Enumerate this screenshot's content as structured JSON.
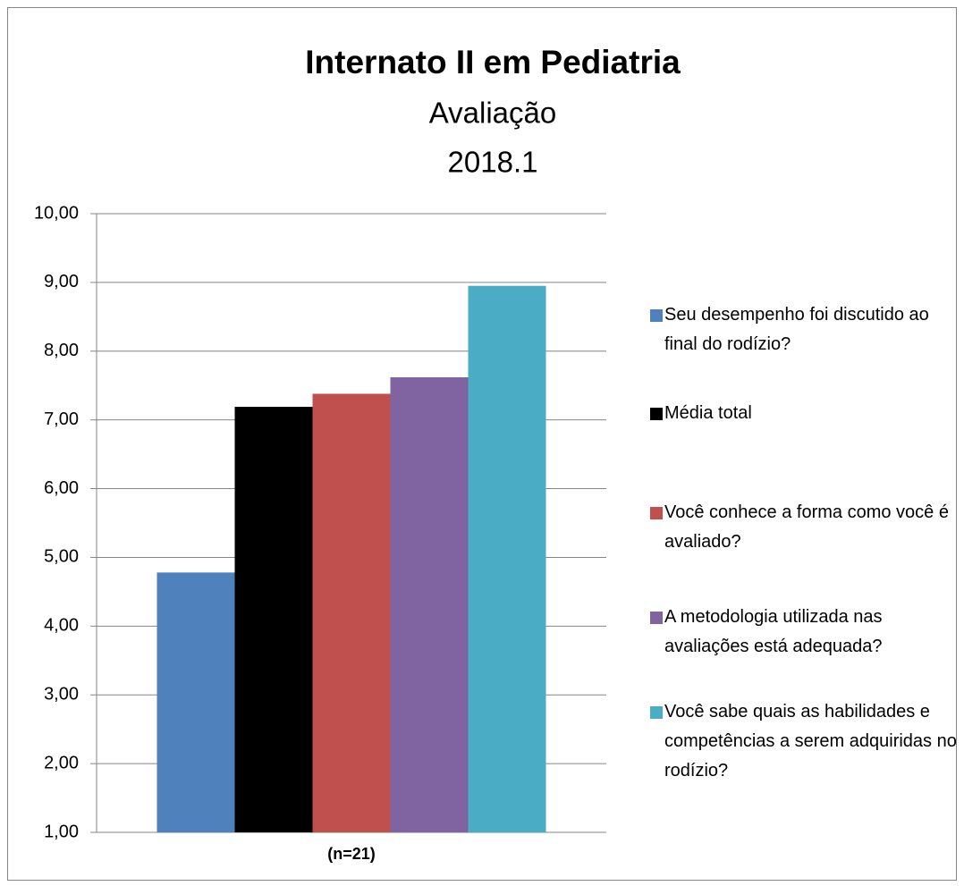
{
  "chart_data": {
    "type": "bar",
    "title": "Internato II em Pediatria",
    "subtitle": [
      "Avaliação",
      "2018.1"
    ],
    "categories": [
      "(n=21)"
    ],
    "series": [
      {
        "name": "Seu desempenho foi discutido ao final do rodízio?",
        "color": "#4f81bd",
        "values": [
          4.78
        ]
      },
      {
        "name": "Média total",
        "color": "#000000",
        "values": [
          7.19
        ]
      },
      {
        "name": "Você conhece a forma como você é avaliado?",
        "color": "#c0504d",
        "values": [
          7.38
        ]
      },
      {
        "name": "A metodologia utilizada nas avaliações está adequada?",
        "color": "#8064a2",
        "values": [
          7.62
        ]
      },
      {
        "name": "Você sabe quais as habilidades e competências a serem adquiridas no rodízio?",
        "color": "#4bacc6",
        "values": [
          8.95
        ]
      }
    ],
    "ylim": [
      1,
      10
    ],
    "yticks": [
      {
        "value": 1,
        "label": "1,00"
      },
      {
        "value": 2,
        "label": "2,00"
      },
      {
        "value": 3,
        "label": "3,00"
      },
      {
        "value": 4,
        "label": "4,00"
      },
      {
        "value": 5,
        "label": "5,00"
      },
      {
        "value": 6,
        "label": "6,00"
      },
      {
        "value": 7,
        "label": "7,00"
      },
      {
        "value": 8,
        "label": "8,00"
      },
      {
        "value": 9,
        "label": "9,00"
      },
      {
        "value": 10,
        "label": "10,00"
      }
    ],
    "grid": true,
    "legend": "right"
  }
}
